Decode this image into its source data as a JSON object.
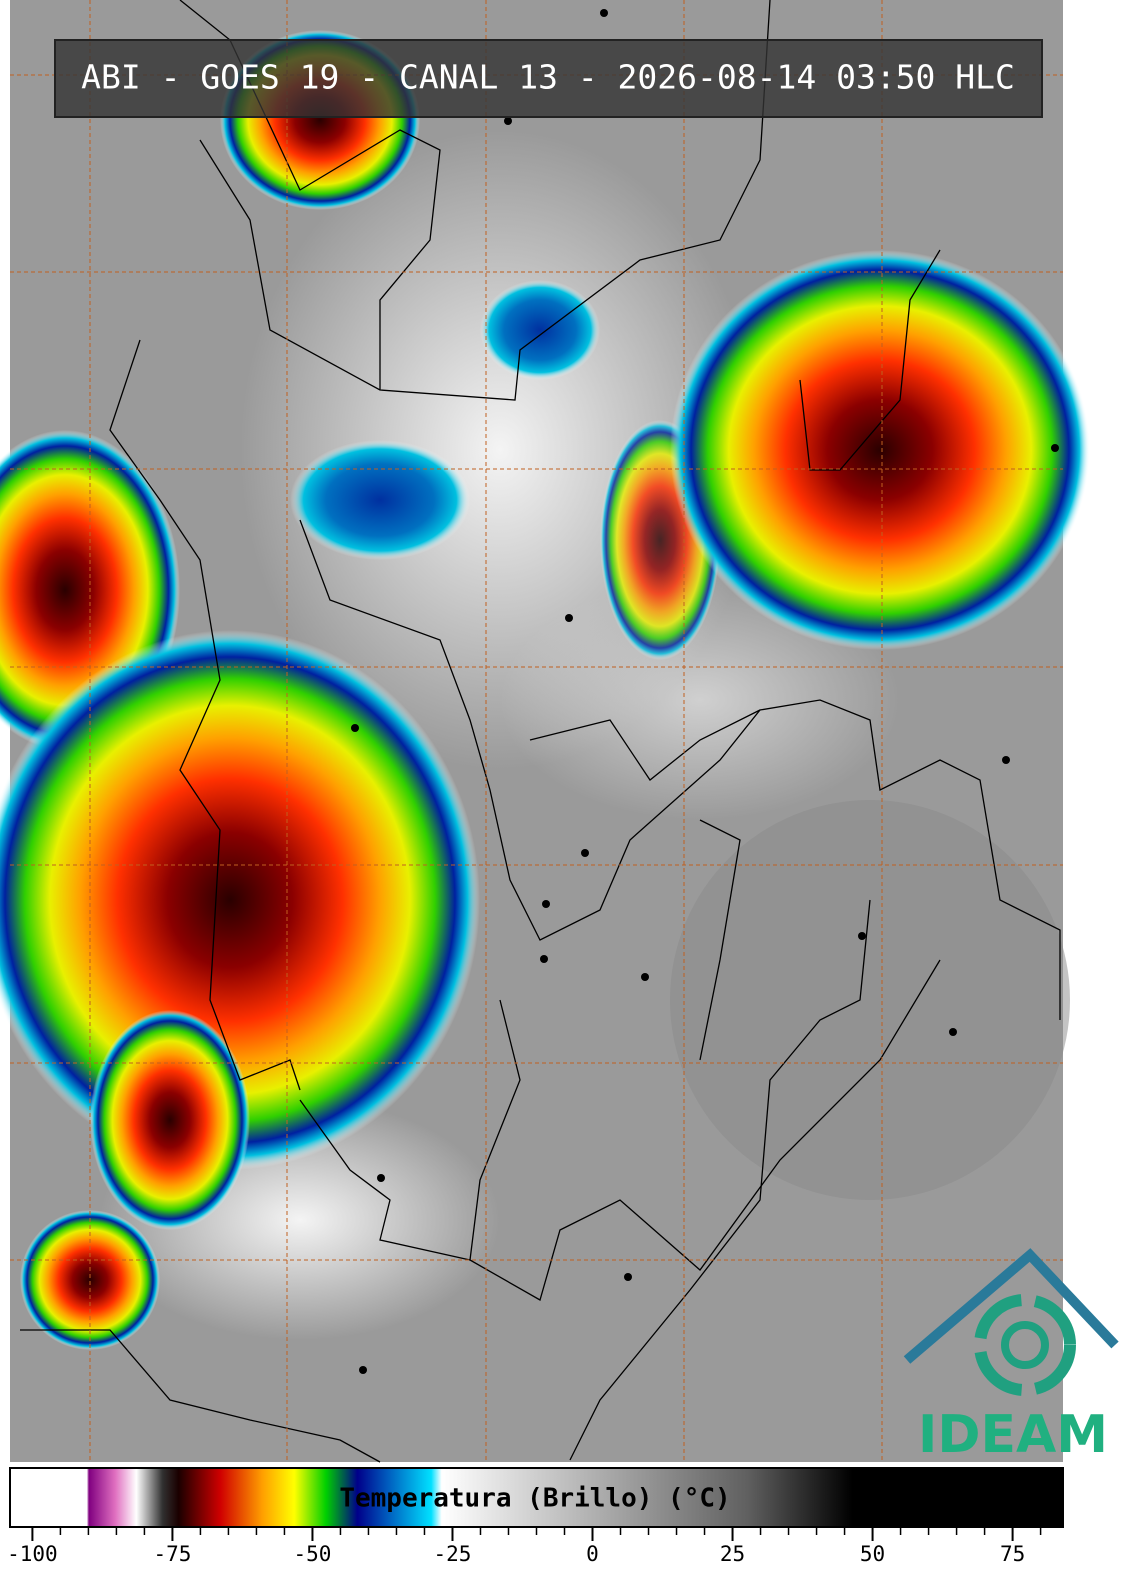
{
  "header": {
    "title": "ABI - GOES 19 - CANAL 13 - 2026-08-14 03:50 HLC"
  },
  "logo": {
    "text": "IDEAM"
  },
  "chart_data": {
    "type": "colorbar",
    "xlabel": "Temperatura (Brillo) (°C)",
    "xlim": [
      -104,
      84
    ],
    "xticks": [
      -100,
      -75,
      -50,
      -25,
      0,
      25,
      50,
      75
    ],
    "xminorticks": [
      -95,
      -90,
      -85,
      -80,
      -70,
      -65,
      -60,
      -55,
      -45,
      -40,
      -35,
      -30,
      -20,
      -15,
      -10,
      -5,
      5,
      10,
      15,
      20,
      30,
      35,
      40,
      45,
      55,
      60,
      65,
      70,
      80
    ]
  }
}
